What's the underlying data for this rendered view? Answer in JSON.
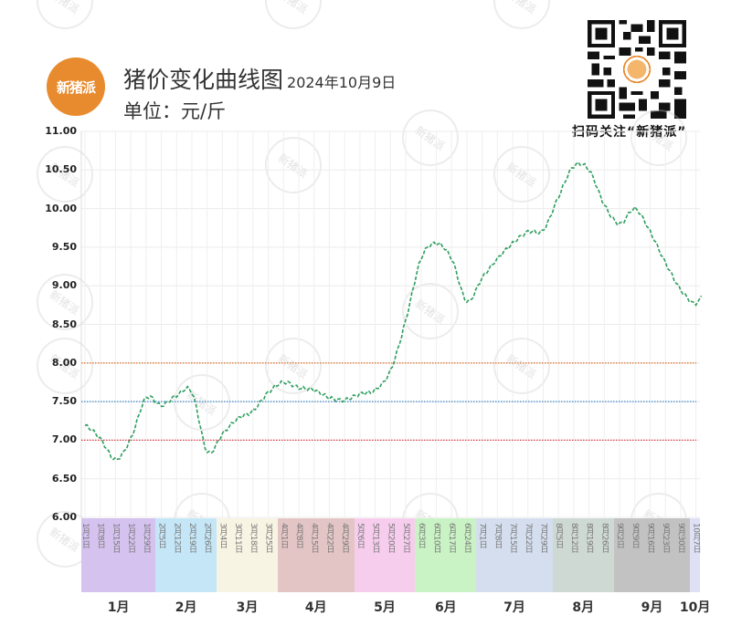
{
  "header": {
    "logo_text": "新猪派",
    "title": "猪价变化曲线图",
    "date": "2024年10月9日",
    "unit": "单位：元/斤",
    "qr_caption": "扫码关注“新猪派”"
  },
  "watermark_text": "新猪派",
  "chart_data": {
    "type": "line",
    "title": "猪价变化曲线图",
    "subtitle": "2024年10月9日",
    "ylabel": "单位：元/斤",
    "xlabel": "",
    "ylim": [
      6.0,
      11.0
    ],
    "yticks": [
      "11.00",
      "10.50",
      "10.00",
      "9.50",
      "9.00",
      "8.50",
      "8.00",
      "7.50",
      "7.00",
      "6.50",
      "6.00"
    ],
    "grid": true,
    "line_style": "dashed",
    "line_color": "#2e9e5e",
    "reference_lines": [
      {
        "value": 8.0,
        "color": "#e07a3a"
      },
      {
        "value": 7.5,
        "color": "#3a86c8"
      },
      {
        "value": 7.0,
        "color": "#e0404a"
      }
    ],
    "x": [
      "1月1日",
      "1月8日",
      "1月15日",
      "1月22日",
      "1月29日",
      "2月5日",
      "2月12日",
      "2月19日",
      "2月26日",
      "3月4日",
      "3月11日",
      "3月18日",
      "3月25日",
      "4月1日",
      "4月8日",
      "4月15日",
      "4月22日",
      "4月29日",
      "5月6日",
      "5月13日",
      "5月20日",
      "5月27日",
      "6月3日",
      "6月10日",
      "6月17日",
      "6月24日",
      "7月1日",
      "7月8日",
      "7月15日",
      "7月22日",
      "7月29日",
      "8月5日",
      "8月12日",
      "8月19日",
      "8月26日",
      "9月2日",
      "9月9日",
      "9月16日",
      "9月23日",
      "9月30日",
      "10月7日"
    ],
    "series": [
      {
        "name": "猪价",
        "values": [
          7.19,
          7.02,
          6.75,
          7.02,
          7.55,
          7.45,
          7.58,
          7.62,
          6.85,
          7.08,
          7.28,
          7.38,
          7.62,
          7.75,
          7.68,
          7.65,
          7.55,
          7.52,
          7.6,
          7.65,
          7.9,
          8.55,
          9.35,
          9.55,
          9.35,
          8.8,
          9.1,
          9.35,
          9.55,
          9.7,
          9.72,
          10.15,
          10.55,
          10.5,
          10.05,
          9.8,
          10.0,
          9.7,
          9.3,
          8.95,
          8.75
        ]
      }
    ],
    "months": [
      {
        "label": "1月",
        "color": "#d5c2ee",
        "weeks": 5
      },
      {
        "label": "2月",
        "color": "#c4e6f7",
        "weeks": 4
      },
      {
        "label": "3月",
        "color": "#f8f4e4",
        "weeks": 4
      },
      {
        "label": "4月",
        "color": "#e4c5c5",
        "weeks": 5
      },
      {
        "label": "5月",
        "color": "#f7cdee",
        "weeks": 4
      },
      {
        "label": "6月",
        "color": "#c9f3c4",
        "weeks": 4
      },
      {
        "label": "7月",
        "color": "#d4deee",
        "weeks": 5
      },
      {
        "label": "8月",
        "color": "#cfd9d4",
        "weeks": 4
      },
      {
        "label": "9月",
        "color": "#c2c2c2",
        "weeks": 5
      },
      {
        "label": "10月",
        "color": "#dfe0f6",
        "weeks": 1
      }
    ]
  }
}
